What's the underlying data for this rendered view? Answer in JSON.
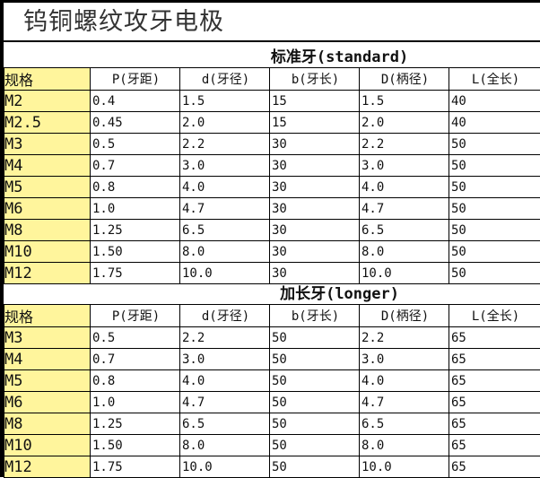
{
  "title": "钨铜螺纹攻牙电极",
  "columns": [
    "规格",
    "P(牙距)",
    "d(牙径)",
    "b(牙长)",
    "D(柄径)",
    "L(全长)"
  ],
  "colors": {
    "spec_column_bg": "#fff59c",
    "border": "#000000"
  },
  "sections": [
    {
      "heading": "标准牙(standard)",
      "rows": [
        [
          "M2",
          "0.4",
          "1.5",
          "15",
          "1.5",
          "40"
        ],
        [
          "M2.5",
          "0.45",
          "2.0",
          "15",
          "2.0",
          "40"
        ],
        [
          "M3",
          "0.5",
          "2.2",
          "30",
          "2.2",
          "50"
        ],
        [
          "M4",
          "0.7",
          "3.0",
          "30",
          "3.0",
          "50"
        ],
        [
          "M5",
          "0.8",
          "4.0",
          "30",
          "4.0",
          "50"
        ],
        [
          "M6",
          "1.0",
          "4.7",
          "30",
          "4.7",
          "50"
        ],
        [
          "M8",
          "1.25",
          "6.5",
          "30",
          "6.5",
          "50"
        ],
        [
          "M10",
          "1.50",
          "8.0",
          "30",
          "8.0",
          "50"
        ],
        [
          "M12",
          "1.75",
          "10.0",
          "30",
          "10.0",
          "50"
        ]
      ]
    },
    {
      "heading": "加长牙(longer)",
      "rows": [
        [
          "M3",
          "0.5",
          "2.2",
          "50",
          "2.2",
          "65"
        ],
        [
          "M4",
          "0.7",
          "3.0",
          "50",
          "3.0",
          "65"
        ],
        [
          "M5",
          "0.8",
          "4.0",
          "50",
          "4.0",
          "65"
        ],
        [
          "M6",
          "1.0",
          "4.7",
          "50",
          "4.7",
          "65"
        ],
        [
          "M8",
          "1.25",
          "6.5",
          "50",
          "6.5",
          "65"
        ],
        [
          "M10",
          "1.50",
          "8.0",
          "50",
          "8.0",
          "65"
        ],
        [
          "M12",
          "1.75",
          "10.0",
          "50",
          "10.0",
          "65"
        ]
      ]
    }
  ]
}
